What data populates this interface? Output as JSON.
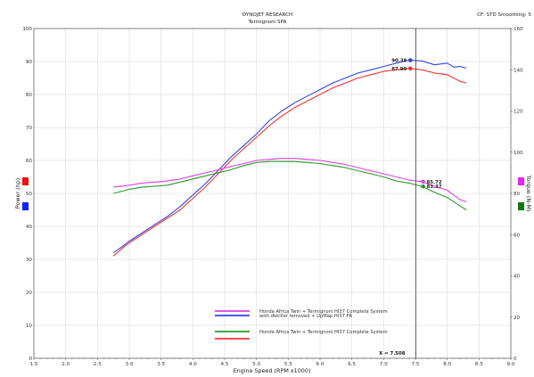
{
  "header": {
    "title": "DYNOJET RESEARCH",
    "subtitle": "Termignoni SPA",
    "settings": "CF: STD  Smoothing: 5"
  },
  "chart_data": {
    "type": "line",
    "xlabel": "Engine Speed (RPM x1000)",
    "ylabel_left": "Power (hp)",
    "ylabel_right": "Torque (N-M)",
    "xlim": [
      1.5,
      9.0
    ],
    "ylim_left": [
      0,
      100
    ],
    "ylim_right": [
      0,
      160
    ],
    "x_ticks": [
      "1.5",
      "2.0",
      "2.5",
      "3.0",
      "3.5",
      "4.0",
      "4.5",
      "5.0",
      "5.5",
      "6.0",
      "6.5",
      "7.0",
      "7.5",
      "8.0",
      "8.5",
      "9.0"
    ],
    "y_ticks_left": [
      "0",
      "10",
      "20",
      "30",
      "40",
      "50",
      "60",
      "70",
      "80",
      "90",
      "100"
    ],
    "y_ticks_right": [
      "0",
      "20",
      "40",
      "60",
      "80",
      "100",
      "120",
      "140",
      "160"
    ],
    "grid": true,
    "cursor": {
      "x": 7.508,
      "label": "X = 7.508"
    },
    "colors": {
      "pink": "#e040e0",
      "blue": "#3344dd",
      "green": "#2a9a2a",
      "red": "#ee3333"
    },
    "series": [
      {
        "key": "blue_power",
        "axis": "left",
        "color": "#3344dd",
        "points": [
          [
            2.75,
            32
          ],
          [
            2.9,
            34
          ],
          [
            3.0,
            35.5
          ],
          [
            3.2,
            38
          ],
          [
            3.4,
            40.5
          ],
          [
            3.6,
            43
          ],
          [
            3.8,
            46
          ],
          [
            4.0,
            49.5
          ],
          [
            4.2,
            53
          ],
          [
            4.4,
            57
          ],
          [
            4.6,
            61
          ],
          [
            4.8,
            64.5
          ],
          [
            5.0,
            68
          ],
          [
            5.2,
            72
          ],
          [
            5.4,
            75
          ],
          [
            5.6,
            77.5
          ],
          [
            5.8,
            79.5
          ],
          [
            6.0,
            81.5
          ],
          [
            6.2,
            83.5
          ],
          [
            6.4,
            85
          ],
          [
            6.6,
            86.5
          ],
          [
            6.8,
            87.5
          ],
          [
            7.0,
            88.5
          ],
          [
            7.2,
            89.5
          ],
          [
            7.4,
            90.4
          ],
          [
            7.6,
            90.2
          ],
          [
            7.8,
            89
          ],
          [
            8.0,
            89.5
          ],
          [
            8.1,
            88.3
          ],
          [
            8.2,
            88.5
          ],
          [
            8.3,
            88
          ]
        ]
      },
      {
        "key": "red_power",
        "axis": "left",
        "color": "#ee3333",
        "points": [
          [
            2.75,
            31
          ],
          [
            2.9,
            33.5
          ],
          [
            3.0,
            35
          ],
          [
            3.2,
            37.5
          ],
          [
            3.4,
            40
          ],
          [
            3.6,
            42.5
          ],
          [
            3.8,
            45
          ],
          [
            4.0,
            48.5
          ],
          [
            4.2,
            52
          ],
          [
            4.4,
            56
          ],
          [
            4.6,
            60
          ],
          [
            4.8,
            63.5
          ],
          [
            5.0,
            67
          ],
          [
            5.2,
            70.5
          ],
          [
            5.4,
            73.5
          ],
          [
            5.6,
            76
          ],
          [
            5.8,
            78
          ],
          [
            6.0,
            80
          ],
          [
            6.2,
            82
          ],
          [
            6.4,
            83.5
          ],
          [
            6.6,
            85
          ],
          [
            6.8,
            86
          ],
          [
            7.0,
            87
          ],
          [
            7.2,
            87.5
          ],
          [
            7.4,
            87.9
          ],
          [
            7.6,
            87.5
          ],
          [
            7.8,
            86.5
          ],
          [
            8.0,
            86
          ],
          [
            8.1,
            85
          ],
          [
            8.2,
            84
          ],
          [
            8.3,
            83.5
          ]
        ]
      },
      {
        "key": "pink_torque",
        "axis": "right",
        "color": "#e040e0",
        "points": [
          [
            2.75,
            83
          ],
          [
            3.0,
            84
          ],
          [
            3.2,
            85
          ],
          [
            3.4,
            85.5
          ],
          [
            3.6,
            86
          ],
          [
            3.8,
            87
          ],
          [
            4.0,
            88.5
          ],
          [
            4.2,
            90
          ],
          [
            4.4,
            91.5
          ],
          [
            4.6,
            93
          ],
          [
            4.8,
            94.5
          ],
          [
            5.0,
            96
          ],
          [
            5.2,
            96.5
          ],
          [
            5.4,
            97
          ],
          [
            5.6,
            97
          ],
          [
            5.8,
            96.5
          ],
          [
            6.0,
            96
          ],
          [
            6.2,
            95
          ],
          [
            6.4,
            94
          ],
          [
            6.6,
            92.5
          ],
          [
            6.8,
            91
          ],
          [
            7.0,
            89.5
          ],
          [
            7.2,
            88
          ],
          [
            7.4,
            86.5
          ],
          [
            7.6,
            85.7
          ],
          [
            7.8,
            83.5
          ],
          [
            8.0,
            81.5
          ],
          [
            8.2,
            77
          ],
          [
            8.3,
            76
          ]
        ]
      },
      {
        "key": "green_torque",
        "axis": "right",
        "color": "#2a9a2a",
        "points": [
          [
            2.75,
            80
          ],
          [
            3.0,
            82
          ],
          [
            3.2,
            83
          ],
          [
            3.4,
            83.5
          ],
          [
            3.6,
            84
          ],
          [
            3.8,
            85.5
          ],
          [
            4.0,
            87
          ],
          [
            4.2,
            88.5
          ],
          [
            4.4,
            90
          ],
          [
            4.6,
            91.5
          ],
          [
            4.8,
            93.5
          ],
          [
            5.0,
            95
          ],
          [
            5.2,
            95.5
          ],
          [
            5.4,
            95.5
          ],
          [
            5.6,
            95.5
          ],
          [
            5.8,
            95
          ],
          [
            6.0,
            94.5
          ],
          [
            6.2,
            93.5
          ],
          [
            6.4,
            92.5
          ],
          [
            6.6,
            91
          ],
          [
            6.8,
            89.5
          ],
          [
            7.0,
            88
          ],
          [
            7.2,
            86
          ],
          [
            7.4,
            85
          ],
          [
            7.6,
            83.4
          ],
          [
            7.8,
            80.5
          ],
          [
            8.0,
            78
          ],
          [
            8.2,
            74
          ],
          [
            8.3,
            72
          ]
        ]
      }
    ],
    "markers": [
      {
        "label": "90.38",
        "x": 7.42,
        "value": 90.38,
        "axis": "left",
        "color": "#3344dd",
        "side": "left"
      },
      {
        "label": "87.90",
        "x": 7.42,
        "value": 87.9,
        "axis": "left",
        "color": "#ee3333",
        "side": "left"
      },
      {
        "label": "85.72",
        "x": 7.62,
        "value": 85.72,
        "axis": "right",
        "color": "#e040e0",
        "side": "right"
      },
      {
        "label": "83.37",
        "x": 7.62,
        "value": 83.37,
        "axis": "right",
        "color": "#2a9a2a",
        "side": "right"
      }
    ],
    "legend": {
      "entries": [
        {
          "color": "#e040e0",
          "text": "Honda Africa Twin + Termignoni HI37 Complete System"
        },
        {
          "color": "#3344dd",
          "text": "with dbkiller removed + UpMap HI37 FR"
        },
        {
          "color": "#2a9a2a",
          "text": "Honda Africa Twin + Termignoni HI37 Complete System"
        },
        {
          "color": "#ee3333",
          "text": ""
        }
      ]
    },
    "side_swatches": {
      "left": [
        "#ee1111",
        "#1122ee"
      ],
      "right": [
        "#ee22ee",
        "#117711"
      ]
    }
  }
}
